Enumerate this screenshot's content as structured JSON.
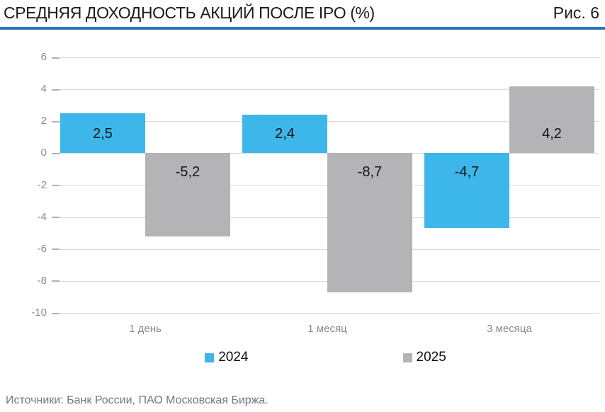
{
  "header": {
    "title": "СРЕДНЯЯ ДОХОДНОСТЬ АКЦИЙ ПОСЛЕ IPO (%)",
    "figure_label": "Рис. 6"
  },
  "footer": {
    "source": "Источники: Банк России, ПАО Московская Биржа."
  },
  "colors": {
    "title_rule": "#2e78b6",
    "series_2024": "#3db7e9",
    "series_2025": "#b4b4b6",
    "gridline": "#dadada",
    "axis_text": "#8a8a8a",
    "value_text": "#141414"
  },
  "chart_data": {
    "type": "bar",
    "title": "СРЕДНЯЯ ДОХОДНОСТЬ АКЦИЙ ПОСЛЕ IPO (%)",
    "categories": [
      "1 день",
      "1 месяц",
      "3 месяца"
    ],
    "series": [
      {
        "name": "2024",
        "color": "#3db7e9",
        "values": [
          2.5,
          2.4,
          -4.7
        ],
        "labels": [
          "2,5",
          "2,4",
          "-4,7"
        ]
      },
      {
        "name": "2025",
        "color": "#b4b4b6",
        "values": [
          -5.2,
          -8.7,
          4.2
        ],
        "labels": [
          "-5,2",
          "-8,7",
          "4,2"
        ]
      }
    ],
    "y_ticks": [
      6,
      4,
      2,
      0,
      -2,
      -4,
      -6,
      -8,
      -10
    ],
    "ylim": [
      -10,
      6
    ],
    "grid": "horizontal",
    "legend_position": "bottom",
    "value_labels": "inside-base"
  }
}
